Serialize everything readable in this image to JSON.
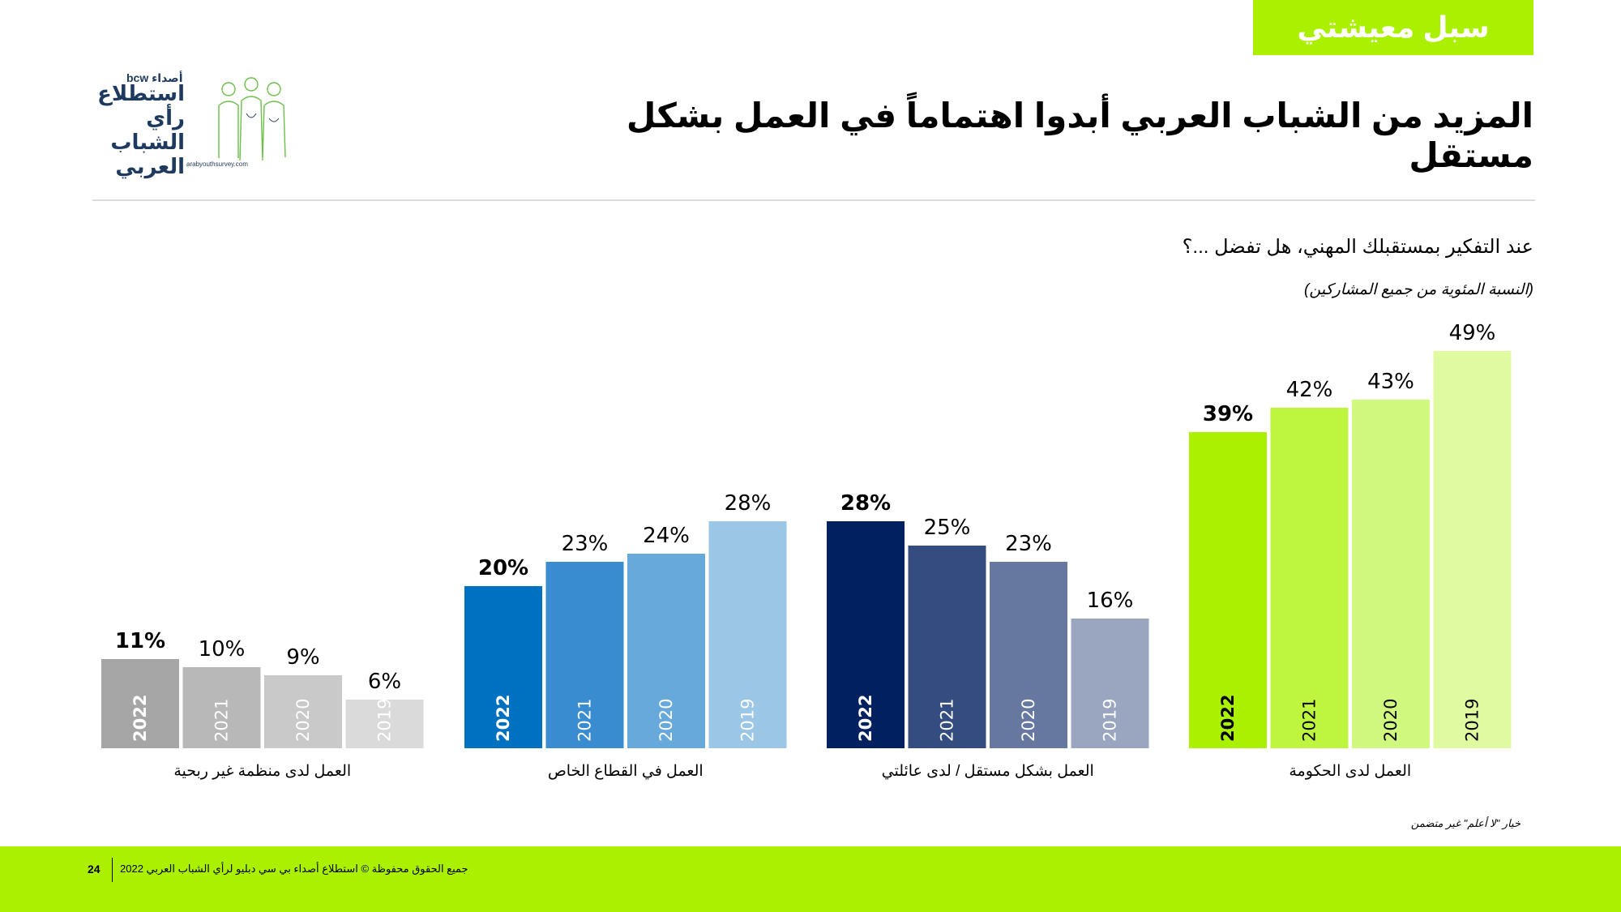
{
  "header": {
    "section_tag": "سبل معيشتي",
    "title": "المزيد من الشباب العربي أبدوا اهتماماً في العمل بشكل مستقل"
  },
  "logo": {
    "brand": "أصداء bcw",
    "line1": "استطلاع",
    "line2": "رأي الشباب",
    "line3": "العربي",
    "url": "arabyouthsurvey.com"
  },
  "question": "عند التفكير بمستقبلك المهني، هل تفضل ...؟",
  "base_note": "(النسبة المئوية من جميع المشاركين)",
  "footnote": "خيار \"لا أعلم\" غير متضمن",
  "footer": {
    "copyright": "جميع الحقوق محفوظة © استطلاع أصداء بي سي دبليو لرأي الشباب العربي 2022",
    "page_number": "24"
  },
  "colors": {
    "accent_green": "#aaf000",
    "footer_band": "#aaf000"
  },
  "chart_data": {
    "type": "bar",
    "title": "",
    "xlabel": "",
    "ylabel": "",
    "ylim": [
      0,
      55
    ],
    "grid": false,
    "legend": "none",
    "value_suffix": "%",
    "groups": [
      {
        "label": "العمل لدى منظمة غير ربحية",
        "years": [
          "2022",
          "2021",
          "2020",
          "2019"
        ],
        "values": [
          11,
          10,
          9,
          6
        ],
        "colors": [
          "#a6a6a6",
          "#b8b8b8",
          "#c9c9c9",
          "#dadada"
        ]
      },
      {
        "label": "العمل في القطاع الخاص",
        "years": [
          "2022",
          "2021",
          "2020",
          "2019"
        ],
        "values": [
          20,
          23,
          24,
          28
        ],
        "colors": [
          "#0070c0",
          "#3a8cd0",
          "#68a9db",
          "#9bc6e6"
        ]
      },
      {
        "label": "العمل بشكل مستقل / لدى عائلتي",
        "years": [
          "2022",
          "2021",
          "2020",
          "2019"
        ],
        "values": [
          28,
          25,
          23,
          16
        ],
        "colors": [
          "#002060",
          "#344c80",
          "#6778a0",
          "#9aa6c0"
        ]
      },
      {
        "label": "العمل لدى الحكومة",
        "years": [
          "2022",
          "2021",
          "2020",
          "2019"
        ],
        "values": [
          39,
          42,
          43,
          49
        ],
        "colors": [
          "#aaf000",
          "#bdf53f",
          "#d0f87f",
          "#e0fa9f"
        ]
      }
    ]
  }
}
